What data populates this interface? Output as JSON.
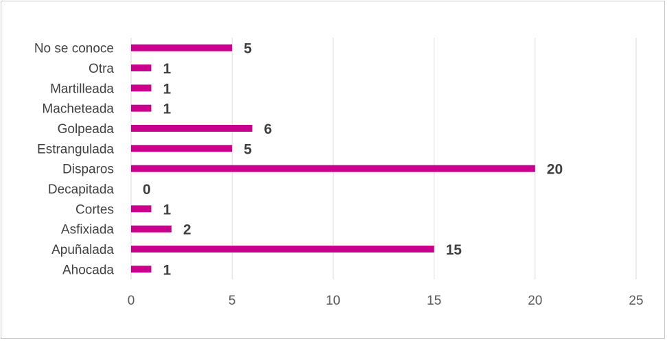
{
  "chart_data": {
    "type": "bar",
    "orientation": "horizontal",
    "categories": [
      "Ahocada",
      "Apuñalada",
      "Asfixiada",
      "Cortes",
      "Decapitada",
      "Disparos",
      "Estrangulada",
      "Golpeada",
      "Macheteada",
      "Martilleada",
      "Otra",
      "No se conoce"
    ],
    "values": [
      1,
      15,
      2,
      1,
      0,
      20,
      5,
      6,
      1,
      1,
      1,
      5
    ],
    "xticks": [
      "0",
      "5",
      "10",
      "15",
      "20",
      "25"
    ],
    "xlim": [
      0,
      25
    ],
    "grid": true,
    "data_labels": true,
    "colors": {
      "bar": "#c8008c",
      "grid": "#d9d9d9",
      "text": "#404040",
      "tick": "#595959"
    }
  }
}
